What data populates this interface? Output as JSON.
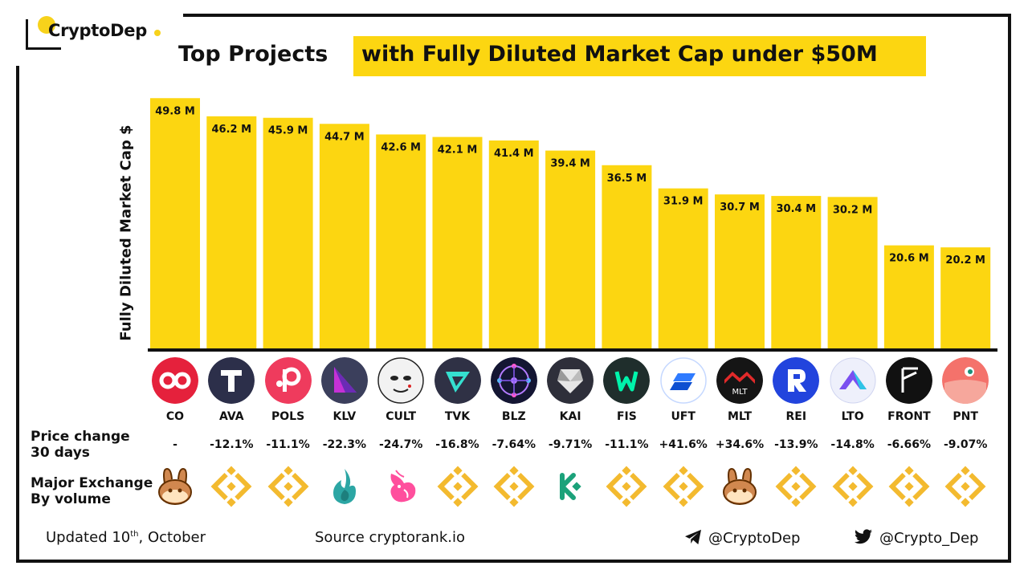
{
  "brand": {
    "name": "CryptoDep",
    "accent": "#fcd611"
  },
  "title": "Top Projects",
  "subtitle": "with Fully Diluted Market Cap under $50M",
  "chart_data": {
    "type": "bar",
    "ylabel": "Fully Diluted Market Cap $",
    "categories": [
      "CO",
      "AVA",
      "POLS",
      "KLV",
      "CULT",
      "TVK",
      "BLZ",
      "KAI",
      "FIS",
      "UFT",
      "MLT",
      "REI",
      "LTO",
      "FRONT",
      "PNT"
    ],
    "values": [
      49.8,
      46.2,
      45.9,
      44.7,
      42.6,
      42.1,
      41.4,
      39.4,
      36.5,
      31.9,
      30.7,
      30.4,
      30.2,
      20.6,
      20.2
    ],
    "data_labels": [
      "49.8 M",
      "46.2 M",
      "45.9 M",
      "44.7 M",
      "42.6 M",
      "42.1 M",
      "41.4 M",
      "39.4 M",
      "36.5 M",
      "31.9 M",
      "30.7 M",
      "30.4 M",
      "30.2 M",
      "20.6 M",
      "20.2 M"
    ],
    "bar_color": "#fcd611",
    "ylim": [
      0,
      50
    ]
  },
  "price_change": {
    "label_line1": "Price change",
    "label_line2": "30 days",
    "values": [
      "-",
      "-12.1%",
      "-11.1%",
      "-22.3%",
      "-24.7%",
      "-16.8%",
      "-7.64%",
      "-9.71%",
      "-11.1%",
      "+41.6%",
      "+34.6%",
      "-13.9%",
      "-14.8%",
      "-6.66%",
      "-9.07%"
    ]
  },
  "exchange": {
    "label_line1": "Major Exchange",
    "label_line2": "By volume",
    "icons": [
      "pancakeswap-icon",
      "binance-icon",
      "binance-icon",
      "huobi-icon",
      "uniswap-icon",
      "binance-icon",
      "binance-icon",
      "kucoin-icon",
      "binance-icon",
      "binance-icon",
      "pancakeswap-icon",
      "binance-icon",
      "binance-icon",
      "binance-icon",
      "binance-icon"
    ]
  },
  "coin_icons": [
    "co-logo-icon",
    "ava-logo-icon",
    "pols-logo-icon",
    "klv-logo-icon",
    "cult-logo-icon",
    "tvk-logo-icon",
    "blz-logo-icon",
    "kai-logo-icon",
    "fis-logo-icon",
    "uft-logo-icon",
    "mlt-logo-icon",
    "rei-logo-icon",
    "lto-logo-icon",
    "front-logo-icon",
    "pnt-logo-icon"
  ],
  "mlt_logo_text": "MLT",
  "footer": {
    "updated_prefix": "Updated 10",
    "updated_sup": "th",
    "updated_suffix": ", October",
    "source": "Source  cryptorank.io",
    "telegram": "@CryptoDep",
    "twitter": "@Crypto_Dep"
  }
}
